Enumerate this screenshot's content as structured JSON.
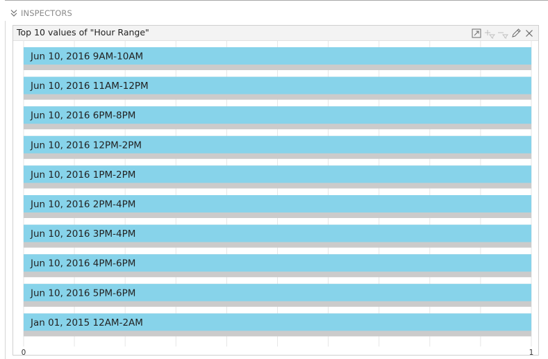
{
  "inspectors": {
    "label": "INSPECTORS",
    "icon": "double-chevron-down-icon"
  },
  "panel": {
    "title": "Top 10 values of \"Hour Range\"",
    "tools": [
      {
        "name": "expand-icon",
        "enabled": true
      },
      {
        "name": "add-filter-icon",
        "enabled": false
      },
      {
        "name": "remove-filter-icon",
        "enabled": false
      },
      {
        "name": "edit-icon",
        "enabled": true
      },
      {
        "name": "close-icon",
        "enabled": true
      }
    ]
  },
  "colors": {
    "bar": "#87d3ea",
    "track": "#cbcbcb",
    "grid": "#e6e6e6",
    "text": "#222222"
  },
  "chart_data": {
    "type": "bar",
    "orientation": "horizontal",
    "title": "Top 10 values of \"Hour Range\"",
    "categories": [
      "Jun 10, 2016 9AM-10AM",
      "Jun 10, 2016 11AM-12PM",
      "Jun 10, 2016 6PM-8PM",
      "Jun 10, 2016 12PM-2PM",
      "Jun 10, 2016 1PM-2PM",
      "Jun 10, 2016 2PM-4PM",
      "Jun 10, 2016 3PM-4PM",
      "Jun 10, 2016 4PM-6PM",
      "Jun 10, 2016 5PM-6PM",
      "Jan 01, 2015 12AM-2AM"
    ],
    "values": [
      1,
      1,
      1,
      1,
      1,
      1,
      1,
      1,
      1,
      1
    ],
    "xlim": [
      0,
      1
    ],
    "x_ticks": [
      "0",
      "1"
    ],
    "grid": true,
    "xlabel": "",
    "ylabel": ""
  }
}
